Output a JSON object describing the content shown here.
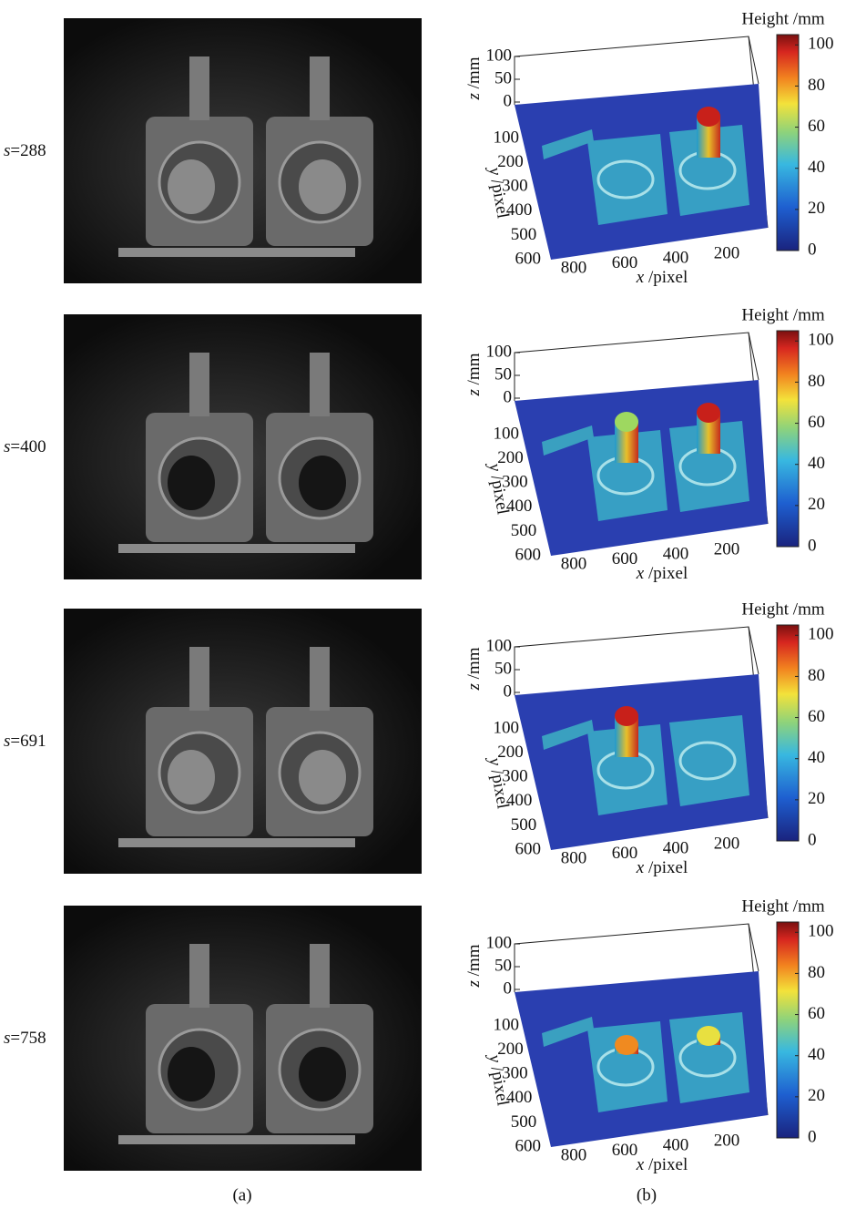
{
  "rows": [
    {
      "var": "s",
      "value": "=288"
    },
    {
      "var": "s",
      "value": "=400"
    },
    {
      "var": "s",
      "value": "=691"
    },
    {
      "var": "s",
      "value": "=758"
    }
  ],
  "axes": {
    "z_label": {
      "var": "z",
      "unit": " /mm"
    },
    "y_label": {
      "var": "y",
      "unit": " /pixel"
    },
    "x_label": {
      "var": "x",
      "unit": " /pixel"
    },
    "z_ticks": [
      100,
      50,
      0
    ],
    "y_ticks": [
      100,
      200,
      300,
      400,
      500,
      600
    ],
    "x_ticks": [
      800,
      600,
      400,
      200
    ]
  },
  "colorbar": {
    "title": "Height /mm",
    "ticks": [
      0,
      20,
      40,
      60,
      80,
      100
    ],
    "lim": [
      0,
      105
    ]
  },
  "captions": [
    "(a)",
    "(b)"
  ]
}
